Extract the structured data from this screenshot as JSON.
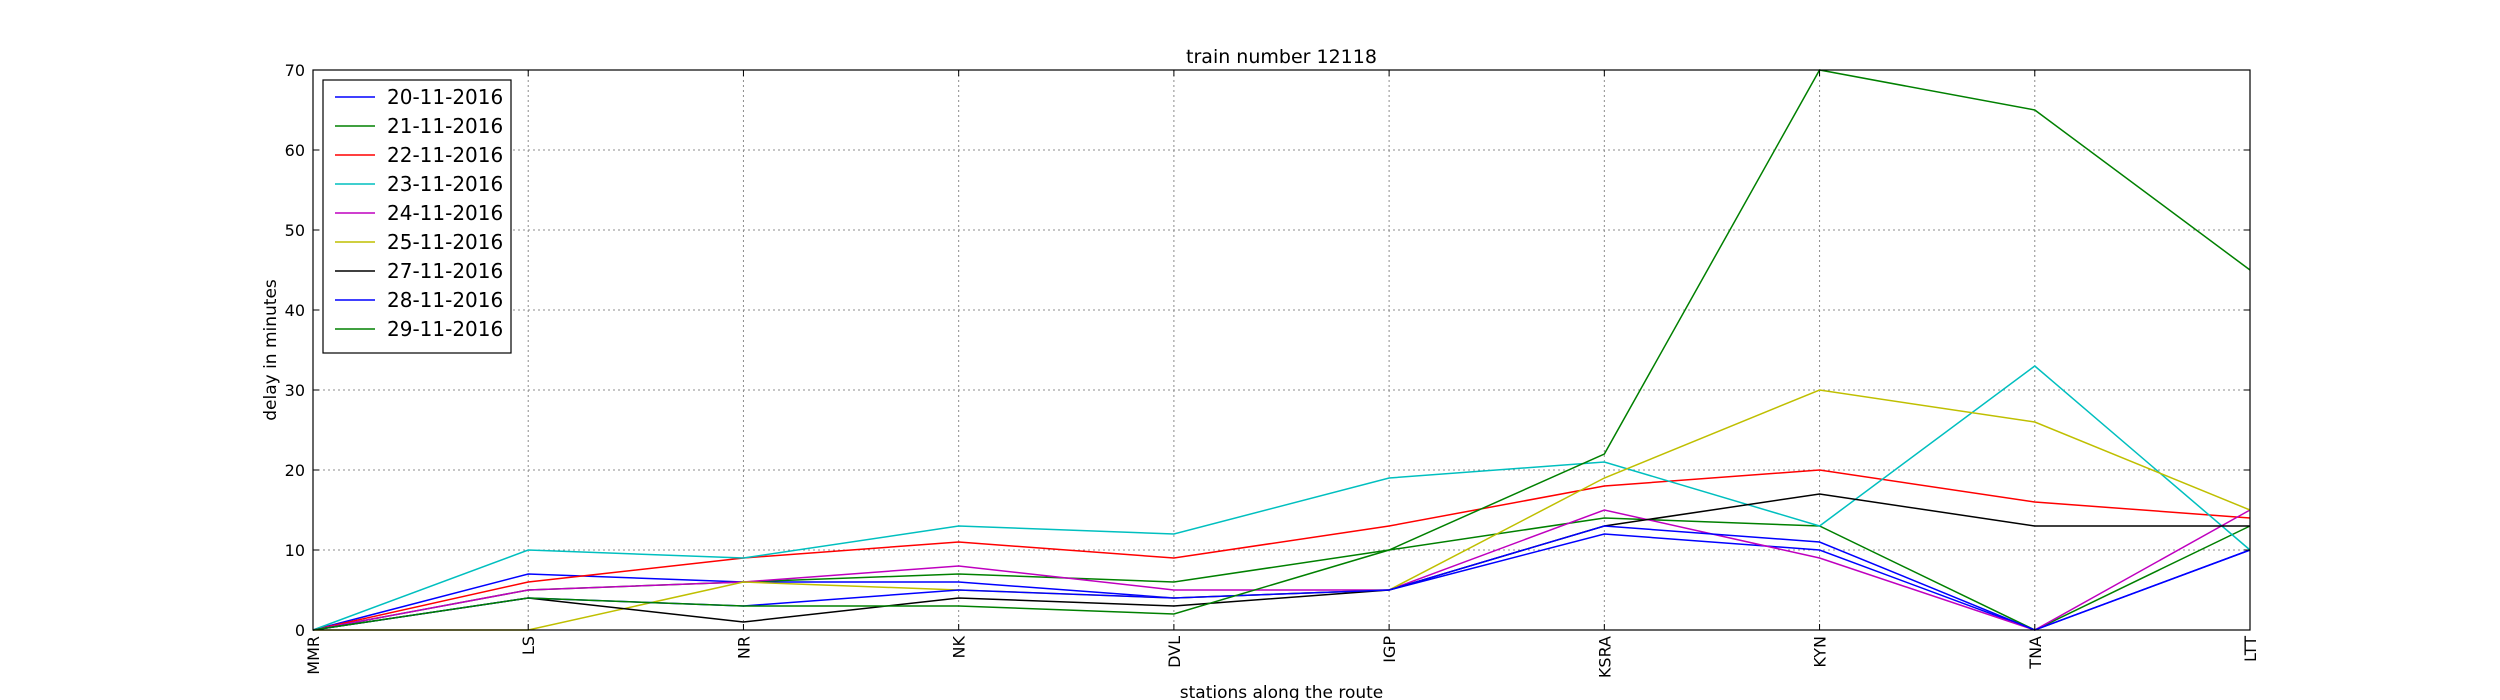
{
  "chart_data": {
    "type": "line",
    "title": "train number 12118",
    "xlabel": "stations along the route",
    "ylabel": "delay in minutes",
    "categories": [
      "MMR",
      "LS",
      "NR",
      "NK",
      "DVL",
      "IGP",
      "KSRA",
      "KYN",
      "TNA",
      "LTT"
    ],
    "ylim": [
      0,
      70
    ],
    "yticks": [
      0,
      10,
      20,
      30,
      40,
      50,
      60,
      70
    ],
    "grid": true,
    "legend_position": "top-left",
    "series": [
      {
        "name": "20-11-2016",
        "color": "#0000ff",
        "values": [
          0,
          7,
          6,
          6,
          4,
          5,
          12,
          10,
          0,
          10
        ]
      },
      {
        "name": "21-11-2016",
        "color": "#008000",
        "values": [
          0,
          5,
          6,
          7,
          6,
          10,
          14,
          13,
          0,
          13
        ]
      },
      {
        "name": "22-11-2016",
        "color": "#ff0000",
        "values": [
          0,
          6,
          9,
          11,
          9,
          13,
          18,
          20,
          16,
          14
        ]
      },
      {
        "name": "23-11-2016",
        "color": "#00bfbf",
        "values": [
          0,
          10,
          9,
          13,
          12,
          19,
          21,
          13,
          33,
          10
        ]
      },
      {
        "name": "24-11-2016",
        "color": "#bf00bf",
        "values": [
          0,
          5,
          6,
          8,
          5,
          5,
          15,
          9,
          0,
          15
        ]
      },
      {
        "name": "25-11-2016",
        "color": "#bfbf00",
        "values": [
          0,
          0,
          6,
          5,
          4,
          5,
          19,
          30,
          26,
          15
        ]
      },
      {
        "name": "27-11-2016",
        "color": "#000000",
        "values": [
          0,
          4,
          1,
          4,
          3,
          5,
          13,
          17,
          13,
          13
        ]
      },
      {
        "name": "28-11-2016",
        "color": "#0000ff",
        "values": [
          0,
          4,
          3,
          5,
          4,
          5,
          13,
          11,
          0,
          10
        ]
      },
      {
        "name": "29-11-2016",
        "color": "#008000",
        "values": [
          0,
          4,
          3,
          3,
          2,
          10,
          22,
          70,
          65,
          45
        ]
      }
    ]
  }
}
